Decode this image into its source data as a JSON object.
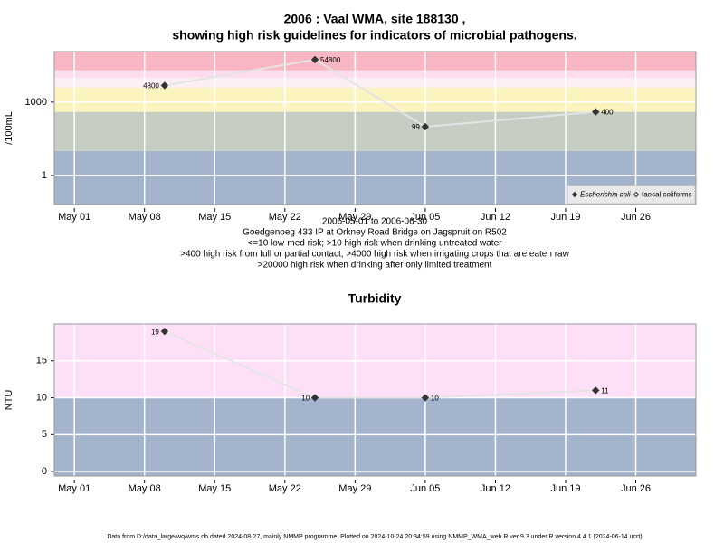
{
  "chart_data": [
    {
      "type": "line",
      "title": [
        "2006 : Vaal WMA, site 188130 ,",
        "showing high risk guidelines for indicators of microbial pathogens."
      ],
      "ylabel": "/100mL",
      "yscale": "log",
      "x": [
        "2006-05-10",
        "2006-05-25",
        "2006-06-05",
        "2006-06-22"
      ],
      "series": [
        {
          "name": "Escherichia coli",
          "color": "#333333",
          "line_color": "#e4e4e4",
          "marker": "diamond",
          "font_style": "italic",
          "values": [
            4800,
            54800,
            99,
            400
          ]
        },
        {
          "name": "faecal coliforms",
          "color": "#333333",
          "marker": "open-diamond",
          "font_style": "normal",
          "values": [
            null,
            null,
            null,
            null
          ]
        }
      ],
      "xlim": [
        "2006-04-29",
        "2006-07-02"
      ],
      "xticks": [
        {
          "value": "2006-05-01",
          "label": "May 01"
        },
        {
          "value": "2006-05-08",
          "label": "May 08"
        },
        {
          "value": "2006-05-15",
          "label": "May 15"
        },
        {
          "value": "2006-05-22",
          "label": "May 22"
        },
        {
          "value": "2006-05-29",
          "label": "May 29"
        },
        {
          "value": "2006-06-05",
          "label": "Jun 05"
        },
        {
          "value": "2006-06-12",
          "label": "Jun 12"
        },
        {
          "value": "2006-06-19",
          "label": "Jun 19"
        },
        {
          "value": "2006-06-26",
          "label": "Jun 26"
        }
      ],
      "ylim": [
        0.065,
        117000
      ],
      "yticks": [
        1,
        1000
      ],
      "grid": true,
      "bands": [
        {
          "from": 0.065,
          "to": 10,
          "color": "#a3b4cc"
        },
        {
          "from": 10,
          "to": 400,
          "color": "#c6cec4"
        },
        {
          "from": 400,
          "to": 4000,
          "color": "#fcf4bf"
        },
        {
          "from": 4000,
          "to": 10000,
          "color": "#fdeef6"
        },
        {
          "from": 10000,
          "to": 20000,
          "color": "#fcdcee"
        },
        {
          "from": 20000,
          "to": 117000,
          "color": "#f9b7c4"
        }
      ],
      "legend": "bottom-right",
      "annotations": [
        "2006-05-01 to 2006-06-30",
        "Goedgenoeg 433 IP at Orkney Road Bridge on Jagspruit on R502",
        "<=10 low-med risk; >10 high risk when drinking untreated water",
        ">400 high risk from full or partial contact; >4000 high risk when irrigating crops that are eaten raw",
        ">20000 high risk when drinking after only limited treatment"
      ]
    },
    {
      "type": "line",
      "title": [
        "Turbidity"
      ],
      "ylabel": "NTU",
      "yscale": "linear",
      "x": [
        "2006-05-10",
        "2006-05-25",
        "2006-06-05",
        "2006-06-22"
      ],
      "series": [
        {
          "color": "#333333",
          "line_color": "#e4e4e4",
          "marker": "diamond",
          "values": [
            19,
            10,
            10,
            11
          ]
        }
      ],
      "xlim": [
        "2006-04-29",
        "2006-07-02"
      ],
      "xticks": [
        {
          "value": "2006-05-01",
          "label": "May 01"
        },
        {
          "value": "2006-05-08",
          "label": "May 08"
        },
        {
          "value": "2006-05-15",
          "label": "May 15"
        },
        {
          "value": "2006-05-22",
          "label": "May 22"
        },
        {
          "value": "2006-05-29",
          "label": "May 29"
        },
        {
          "value": "2006-06-05",
          "label": "Jun 05"
        },
        {
          "value": "2006-06-12",
          "label": "Jun 12"
        },
        {
          "value": "2006-06-19",
          "label": "Jun 19"
        },
        {
          "value": "2006-06-26",
          "label": "Jun 26"
        }
      ],
      "ylim": [
        -0.6,
        20
      ],
      "yticks": [
        0,
        5,
        10,
        15
      ],
      "grid": true,
      "bands": [
        {
          "from": -0.6,
          "to": 10,
          "color": "#a3b4cc"
        },
        {
          "from": 10,
          "to": 20,
          "color": "#fde0f8"
        }
      ]
    }
  ],
  "footer": "Data from D:/data_large/wq/wms.db dated 2024-08-27, mainly NMMP programme. Plotted on 2024-10-24 20:34:59 using NMMP_WMA_web.R ver 9.3 under R version 4.4.1 (2024-06-14 ucrt)"
}
